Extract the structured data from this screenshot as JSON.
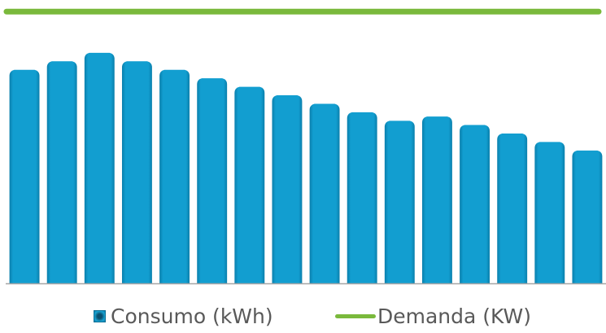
{
  "chart_data": {
    "type": "bar",
    "categories": [
      "",
      "",
      "",
      "",
      "",
      "",
      "",
      "",
      "",
      "",
      "",
      "",
      "",
      "",
      "",
      ""
    ],
    "series": [
      {
        "name": "Consumo (kWh)",
        "type": "bar",
        "values": [
          100,
          104,
          108,
          104,
          100,
          96,
          92,
          88,
          84,
          80,
          76,
          78,
          74,
          70,
          66,
          62
        ],
        "color": "#129ed0"
      },
      {
        "name": "Demanda (KW)",
        "type": "line",
        "values": [
          128,
          128,
          128,
          128,
          128,
          128,
          128,
          128,
          128,
          128,
          128,
          128,
          128,
          128,
          128,
          128
        ],
        "color": "#7ab93c"
      }
    ],
    "ylim": [
      0,
      130
    ],
    "grid": false,
    "legend_position": "bottom",
    "title": "",
    "xlabel": "",
    "ylabel": ""
  },
  "legend": {
    "consumo_label": "Consumo (kWh)",
    "demanda_label": "Demanda (KW)"
  },
  "colors": {
    "bar": "#129ed0",
    "bar_dark": "#0a7fac",
    "line": "#7ab93c",
    "axis": "#a6a6a6",
    "text": "#595959"
  }
}
